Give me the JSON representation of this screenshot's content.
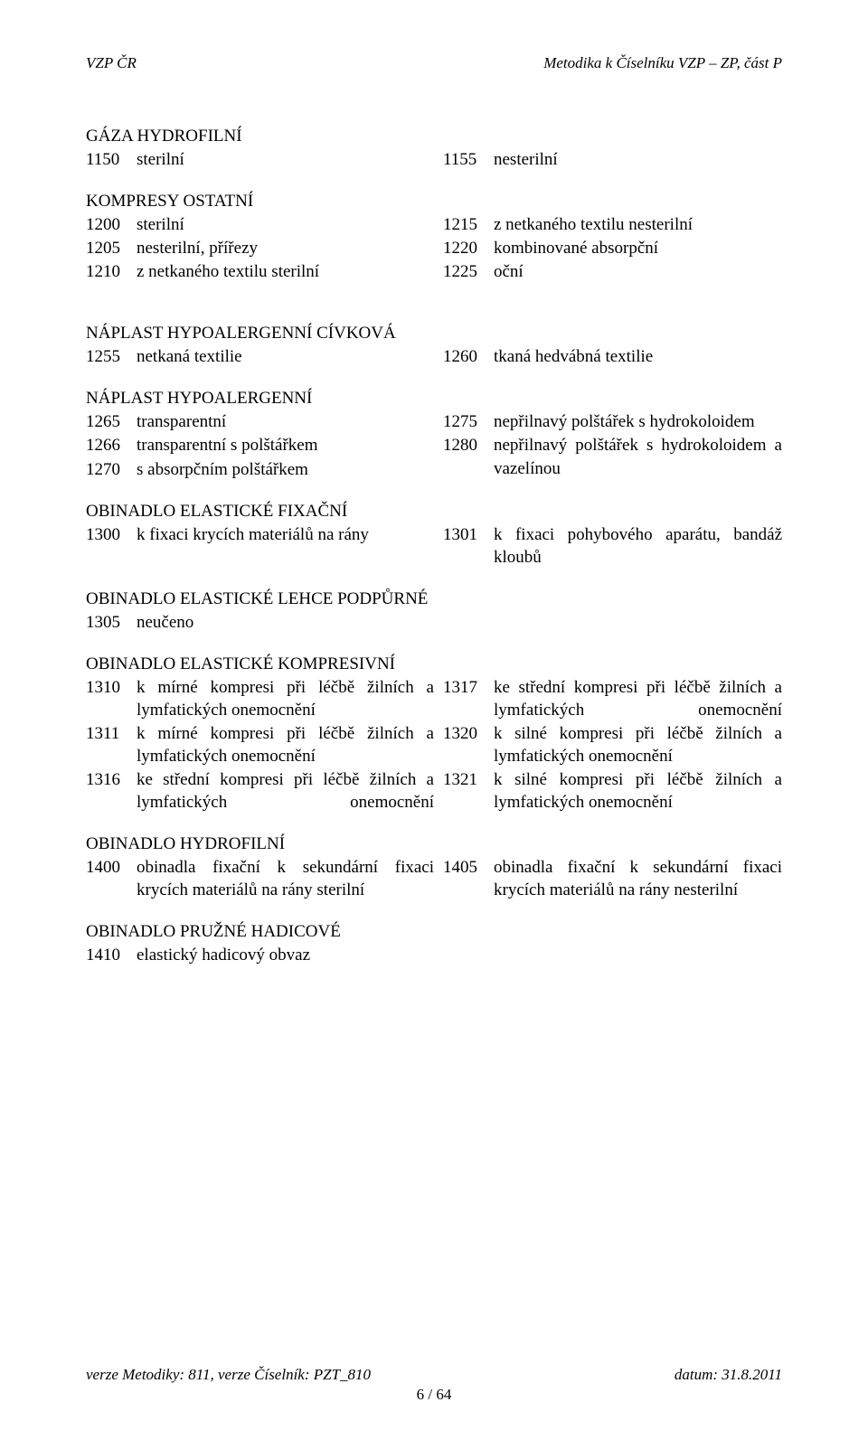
{
  "header": {
    "left": "VZP ČR",
    "right": "Metodika k Číselníku VZP – ZP, část P"
  },
  "sections": [
    {
      "title": "GÁZA HYDROFILNÍ",
      "left": [
        {
          "code": "1150",
          "desc": "sterilní"
        }
      ],
      "right": [
        {
          "code": "1155",
          "desc": "nesterilní"
        }
      ]
    },
    {
      "title": "KOMPRESY OSTATNÍ",
      "left": [
        {
          "code": "1200",
          "desc": "sterilní"
        },
        {
          "code": "1205",
          "desc": "nesterilní, přířezy"
        },
        {
          "code": "1210",
          "desc": "z netkaného textilu sterilní"
        }
      ],
      "right": [
        {
          "code": "1215",
          "desc": "z netkaného textilu nesterilní"
        },
        {
          "code": "1220",
          "desc": "kombinované absorpční"
        },
        {
          "code": "1225",
          "desc": "oční"
        }
      ]
    },
    {
      "title": "NÁPLAST HYPOALERGENNÍ CÍVKOVÁ",
      "left": [
        {
          "code": "1255",
          "desc": "netkaná textilie"
        }
      ],
      "right": [
        {
          "code": "1260",
          "desc": "tkaná hedvábná textilie"
        }
      ]
    },
    {
      "title": "NÁPLAST HYPOALERGENNÍ",
      "left": [
        {
          "code": "1265",
          "desc": "transparentní"
        },
        {
          "code": "1266",
          "desc": "transparentní s polštářkem"
        },
        {
          "code": "1270",
          "desc": "s absorpčním polštářkem"
        }
      ],
      "right": [
        {
          "code": "1275",
          "desc": "nepřilnavý polštářek s hydrokoloidem"
        },
        {
          "code": "1280",
          "desc": "nepřilnavý polštářek s hydrokoloidem a vazelínou"
        }
      ]
    },
    {
      "title": "OBINADLO ELASTICKÉ FIXAČNÍ",
      "left": [
        {
          "code": "1300",
          "desc": "k fixaci krycích materiálů na rány"
        }
      ],
      "right": [
        {
          "code": "1301",
          "desc": "k fixaci pohybového aparátu, bandáž kloubů"
        }
      ]
    },
    {
      "title": "OBINADLO ELASTICKÉ LEHCE PODPŮRNÉ",
      "left": [
        {
          "code": "1305",
          "desc": "neučeno"
        }
      ],
      "right": []
    },
    {
      "title": "OBINADLO ELASTICKÉ KOMPRESIVNÍ",
      "left": [
        {
          "code": "1310",
          "desc": "k mírné kompresi při léčbě žilních a lymfatických onemocnění"
        },
        {
          "code": "1311",
          "desc": "k mírné kompresi při léčbě žilních a lymfatických onemocnění"
        },
        {
          "code": "1316",
          "desc": "ke střední kompresi při léčbě žilních a lymfatických onemocnění",
          "justify": true
        }
      ],
      "right": [
        {
          "code": "1317",
          "desc": "ke střední kompresi při léčbě žilních a lymfatických onemocnění",
          "justify": true
        },
        {
          "code": "1320",
          "desc": "k silné kompresi při léčbě žilních a lymfatických onemocnění"
        },
        {
          "code": "1321",
          "desc": "k silné kompresi při léčbě žilních a lymfatických onemocnění"
        }
      ]
    },
    {
      "title": "OBINADLO HYDROFILNÍ",
      "left": [
        {
          "code": "1400",
          "desc": "obinadla fixační k sekundární fixaci krycích materiálů na rány sterilní"
        }
      ],
      "right": [
        {
          "code": "1405",
          "desc": "obinadla fixační k sekundární fixaci krycích materiálů na rány nesterilní"
        }
      ]
    },
    {
      "title": "OBINADLO PRUŽNÉ HADICOVÉ",
      "left": [
        {
          "code": "1410",
          "desc": "elastický hadicový obvaz"
        }
      ],
      "right": []
    }
  ],
  "footer": {
    "left": "verze Metodiky: 811, verze Číselník: PZT_810",
    "right": "datum: 31.8.2011",
    "page": "6 / 64"
  }
}
